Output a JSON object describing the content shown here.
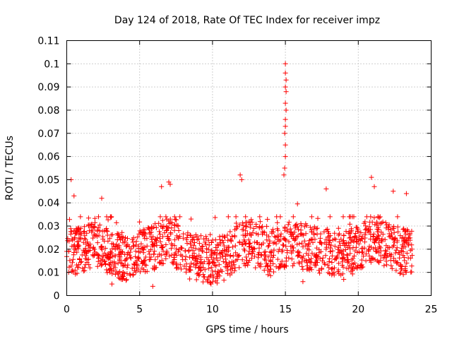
{
  "chart_data": {
    "type": "scatter",
    "title": "Day 124 of 2018, Rate Of TEC Index for receiver impz",
    "xlabel": "GPS time / hours",
    "ylabel": "ROTI / TECUs",
    "xlim": [
      0,
      25
    ],
    "ylim": [
      0,
      0.11
    ],
    "xticks": [
      0,
      5,
      10,
      15,
      20,
      25
    ],
    "xtick_labels": [
      "0",
      "5",
      "10",
      "15",
      "20",
      "25"
    ],
    "yticks": [
      0,
      0.01,
      0.02,
      0.03,
      0.04,
      0.05,
      0.06,
      0.07,
      0.08,
      0.09,
      0.1,
      0.11
    ],
    "ytick_labels": [
      "0",
      "0.01",
      "0.02",
      "0.03",
      "0.04",
      "0.05",
      "0.06",
      "0.07",
      "0.08",
      "0.09",
      "0.1",
      "0.11"
    ],
    "grid": true,
    "marker": "+",
    "marker_color": "#ff0000",
    "series": [
      {
        "name": "ROTI",
        "x_range": [
          0,
          23.7
        ],
        "baseline": [
          [
            0,
            0.015
          ],
          [
            1,
            0.018
          ],
          [
            2,
            0.02
          ],
          [
            3,
            0.017
          ],
          [
            4,
            0.014
          ],
          [
            5,
            0.017
          ],
          [
            6,
            0.019
          ],
          [
            7,
            0.022
          ],
          [
            8,
            0.016
          ],
          [
            9,
            0.014
          ],
          [
            10,
            0.012
          ],
          [
            11,
            0.015
          ],
          [
            12,
            0.021
          ],
          [
            13,
            0.019
          ],
          [
            14,
            0.016
          ],
          [
            15,
            0.02
          ],
          [
            16,
            0.019
          ],
          [
            17,
            0.018
          ],
          [
            18,
            0.017
          ],
          [
            19,
            0.016
          ],
          [
            20,
            0.018
          ],
          [
            21,
            0.023
          ],
          [
            22,
            0.02
          ],
          [
            23,
            0.017
          ],
          [
            23.7,
            0.016
          ]
        ],
        "spread_min": 0.004,
        "spread_max": 0.034,
        "n_points": 1500,
        "highlights": [
          [
            0.3,
            0.05
          ],
          [
            0.5,
            0.043
          ],
          [
            2.4,
            0.042
          ],
          [
            6.5,
            0.047
          ],
          [
            7.0,
            0.049
          ],
          [
            7.1,
            0.048
          ],
          [
            11.9,
            0.052
          ],
          [
            12.0,
            0.05
          ],
          [
            14.9,
            0.052
          ],
          [
            14.95,
            0.055
          ],
          [
            15.0,
            0.06
          ],
          [
            15.0,
            0.065
          ],
          [
            14.95,
            0.07
          ],
          [
            15.0,
            0.073
          ],
          [
            15.0,
            0.076
          ],
          [
            15.05,
            0.08
          ],
          [
            15.0,
            0.083
          ],
          [
            15.05,
            0.088
          ],
          [
            15.0,
            0.09
          ],
          [
            15.05,
            0.093
          ],
          [
            15.0,
            0.096
          ],
          [
            15.0,
            0.1
          ],
          [
            17.8,
            0.046
          ],
          [
            20.9,
            0.051
          ],
          [
            21.1,
            0.047
          ],
          [
            22.4,
            0.045
          ],
          [
            23.3,
            0.044
          ],
          [
            3.1,
            0.005
          ],
          [
            5.9,
            0.004
          ],
          [
            9.9,
            0.005
          ],
          [
            16.2,
            0.006
          ],
          [
            19.0,
            0.007
          ]
        ]
      }
    ]
  }
}
